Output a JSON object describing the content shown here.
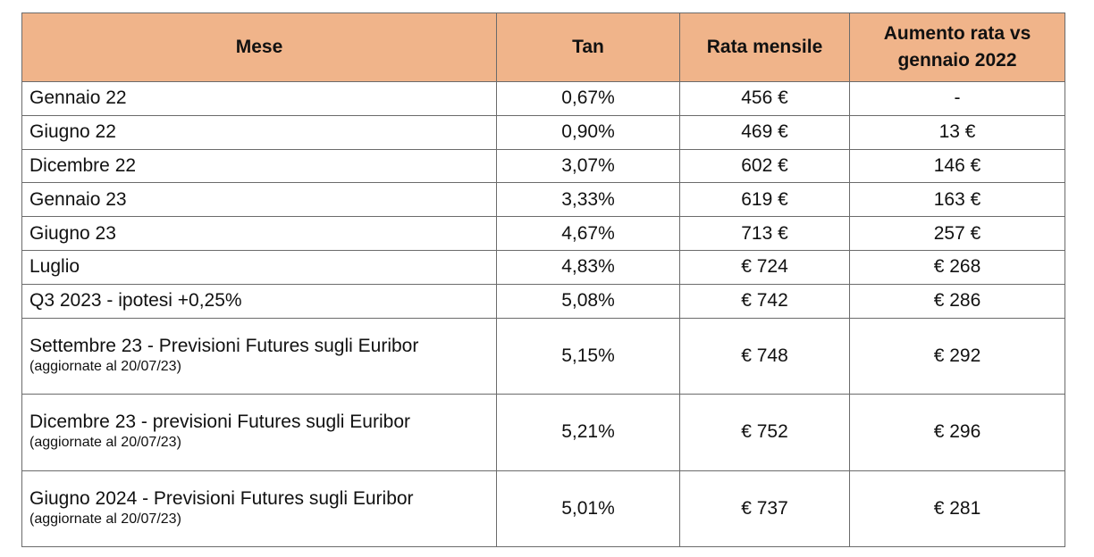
{
  "table": {
    "headers": {
      "month": "Mese",
      "tan": "Tan",
      "rata": "Rata mensile",
      "aumento_line1": "Aumento rata vs",
      "aumento_line2": "gennaio 2022"
    },
    "rows": [
      {
        "month": "Gennaio 22",
        "note": "",
        "tan": "0,67%",
        "rata": "456 €",
        "aumento": "-"
      },
      {
        "month": "Giugno 22",
        "note": "",
        "tan": "0,90%",
        "rata": "469 €",
        "aumento": "13 €"
      },
      {
        "month": "Dicembre 22",
        "note": "",
        "tan": "3,07%",
        "rata": "602 €",
        "aumento": "146 €"
      },
      {
        "month": "Gennaio 23",
        "note": "",
        "tan": "3,33%",
        "rata": "619 €",
        "aumento": "163 €"
      },
      {
        "month": "Giugno 23",
        "note": "",
        "tan": "4,67%",
        "rata": "713 €",
        "aumento": "257 €"
      },
      {
        "month": "Luglio",
        "note": "",
        "tan": "4,83%",
        "rata": "€ 724",
        "aumento": "€ 268"
      },
      {
        "month": "Q3 2023 - ipotesi +0,25%",
        "note": "",
        "tan": "5,08%",
        "rata": "€ 742",
        "aumento": "€ 286"
      },
      {
        "month": "Settembre 23 - Previsioni Futures sugli Euribor",
        "note": "(aggiornate al 20/07/23)",
        "tan": "5,15%",
        "rata": "€ 748",
        "aumento": "€ 292"
      },
      {
        "month": "Dicembre 23 - previsioni Futures sugli Euribor",
        "note": "(aggiornate al 20/07/23)",
        "tan": "5,21%",
        "rata": "€ 752",
        "aumento": "€ 296"
      },
      {
        "month": "Giugno 2024 - Previsioni Futures sugli Euribor",
        "note": "(aggiornate al 20/07/23)",
        "tan": "5,01%",
        "rata": "€ 737",
        "aumento": "€ 281"
      }
    ]
  },
  "colors": {
    "header_background": "#f0b48a",
    "border": "#6b6b6b",
    "text": "#111111"
  }
}
